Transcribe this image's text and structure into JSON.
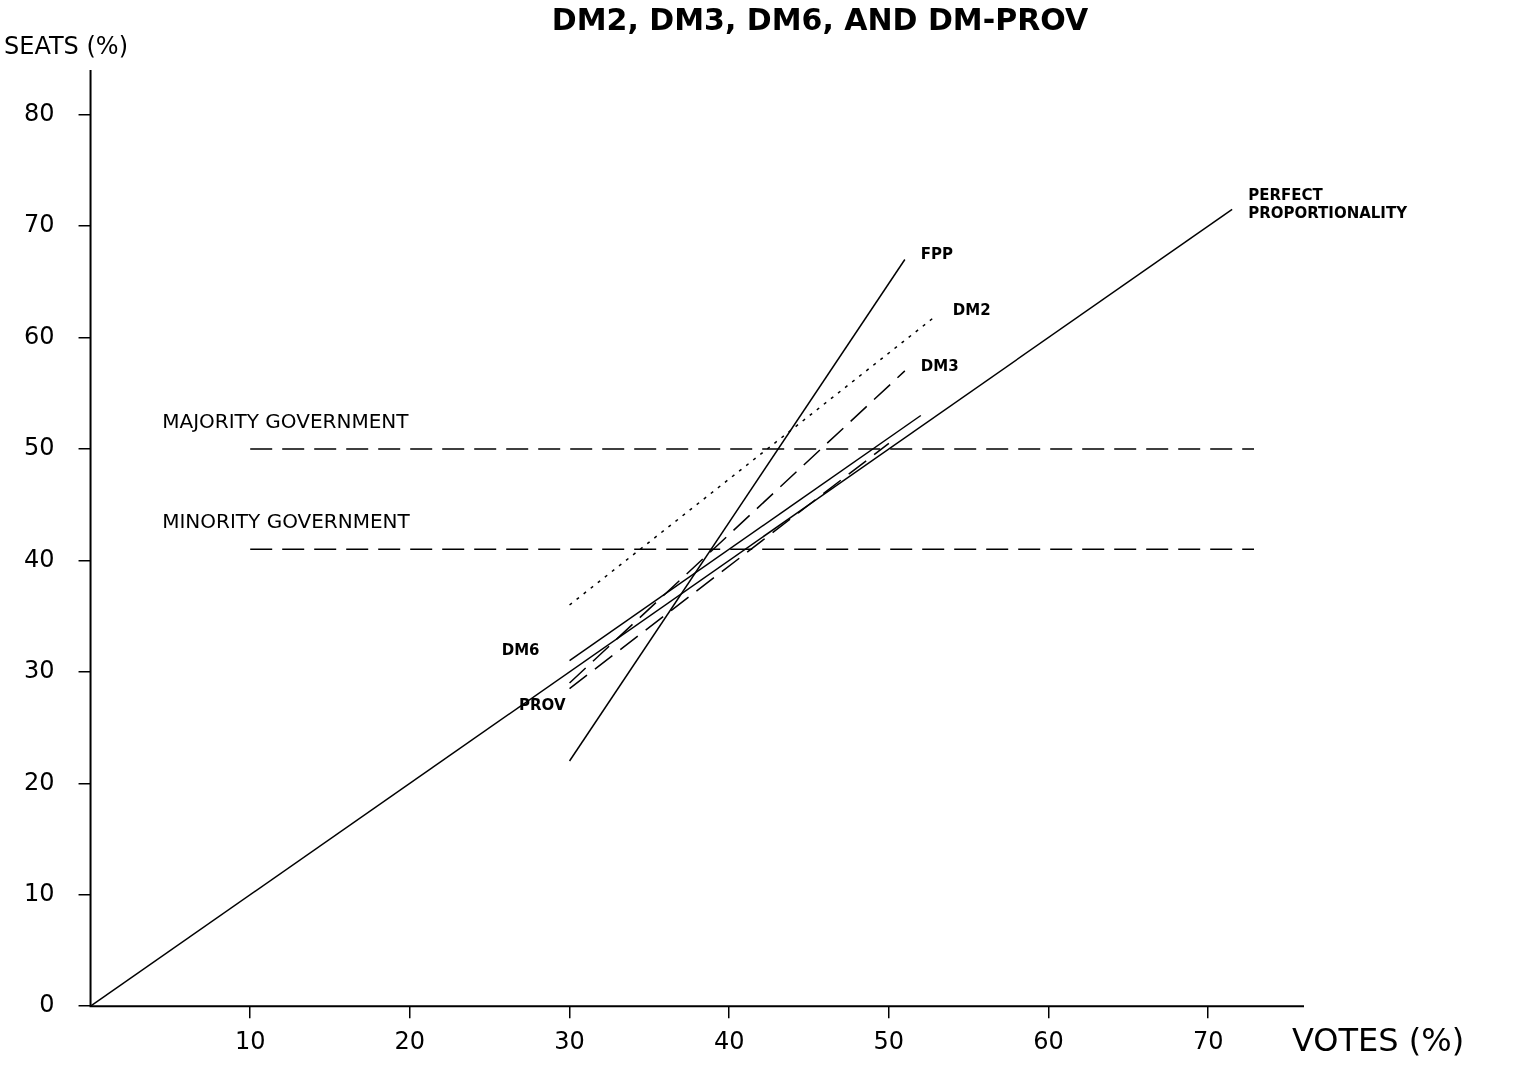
{
  "chart_data": {
    "type": "line",
    "title": "DM2, DM3, DM6, AND DM-PROV",
    "xlabel": "VOTES (%)",
    "ylabel": "SEATS (%)",
    "xlim": [
      0,
      76
    ],
    "ylim": [
      0,
      84
    ],
    "xticks": [
      10,
      20,
      30,
      40,
      50,
      60,
      70
    ],
    "yticks": [
      0,
      10,
      20,
      30,
      40,
      50,
      60,
      70,
      80
    ],
    "grid": false,
    "legend": false,
    "marker": "none",
    "series": [
      {
        "name": "PERFECT PROPORTIONALITY",
        "color": "#000000",
        "x": [
          0,
          71.5
        ],
        "values": [
          0,
          71.5
        ],
        "line_style": "solid"
      },
      {
        "name": "FPP",
        "color": "#000000",
        "x": [
          30,
          51
        ],
        "values": [
          22,
          67
        ],
        "line_style": "solid"
      },
      {
        "name": "DM2",
        "color": "#000000",
        "x": [
          30,
          53
        ],
        "values": [
          36,
          62
        ],
        "line_style": "dotted"
      },
      {
        "name": "DM3",
        "color": "#000000",
        "x": [
          30,
          51
        ],
        "values": [
          29,
          57
        ],
        "line_style": "dashed"
      },
      {
        "name": "DM6",
        "color": "#000000",
        "x": [
          30,
          52
        ],
        "values": [
          31,
          53
        ],
        "line_style": "solid"
      },
      {
        "name": "PROV",
        "color": "#000000",
        "x": [
          30,
          50
        ],
        "values": [
          28.5,
          50.5
        ],
        "line_style": "dashed"
      }
    ],
    "ref_lines": [
      {
        "axis": "y",
        "value": 50,
        "label": "MAJORITY GOVERNMENT",
        "line_style": "dashed",
        "color": "#000000"
      },
      {
        "axis": "y",
        "value": 41,
        "label": "MINORITY GOVERNMENT",
        "line_style": "dashed",
        "color": "#000000"
      }
    ]
  }
}
